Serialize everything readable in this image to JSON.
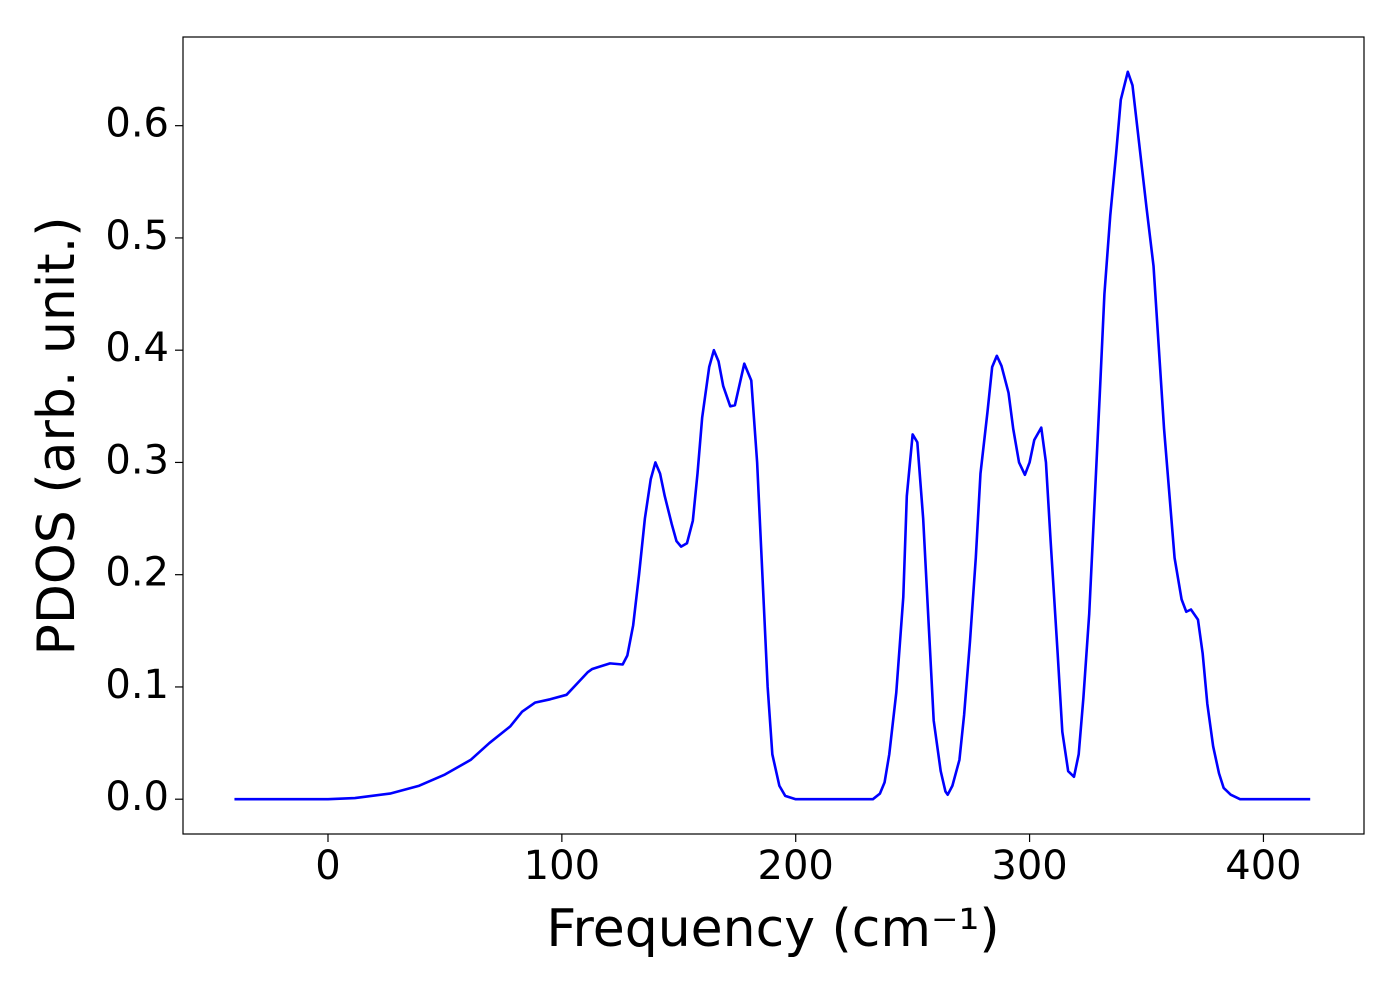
{
  "chart_data": {
    "type": "line",
    "xlabel": "Frequency (cm⁻¹)",
    "ylabel": "PDOS (arb. unit.)",
    "xlim": [
      -62,
      443
    ],
    "ylim": [
      -0.031,
      0.679
    ],
    "xticks": [
      0,
      100,
      200,
      300,
      400
    ],
    "yticks": [
      {
        "value": 0,
        "label": "0.0"
      },
      0.1,
      0.2,
      0.3,
      0.4,
      0.5,
      0.6
    ],
    "grid": false,
    "series": [
      {
        "color": "#0000ff",
        "x": [
          -40,
          0,
          11.5,
          26.5,
          39,
          50,
          61,
          69,
          78,
          83,
          88.5,
          95,
          102,
          106.5,
          111,
          113,
          116,
          120.6,
          126,
          128,
          130.5,
          133,
          135.5,
          138,
          140,
          142,
          144,
          147,
          149,
          151,
          153.5,
          156,
          158,
          160,
          163,
          165,
          167,
          169,
          172,
          174,
          178,
          181,
          183.5,
          188,
          190,
          193,
          195.5,
          200,
          233,
          236,
          238,
          240,
          243,
          246,
          247.5,
          250,
          252,
          254.5,
          257,
          259,
          262,
          264,
          265,
          267,
          270,
          272,
          274.5,
          277,
          279,
          282,
          284,
          286,
          288,
          291,
          293,
          295.5,
          298,
          300,
          302,
          305,
          307,
          309,
          312,
          314,
          316.5,
          319,
          321,
          323,
          325.5,
          330,
          332,
          334.5,
          337,
          339,
          342,
          344,
          350,
          353,
          357.5,
          362,
          365,
          367,
          369,
          372,
          374,
          376,
          378.5,
          381,
          383,
          386,
          390,
          420
        ],
        "values": [
          0,
          0,
          0.001,
          0.005,
          0.012,
          0.022,
          0.035,
          0.05,
          0.065,
          0.078,
          0.086,
          0.089,
          0.093,
          0.103,
          0.113,
          0.116,
          0.118,
          0.121,
          0.12,
          0.128,
          0.155,
          0.2,
          0.25,
          0.285,
          0.3,
          0.29,
          0.27,
          0.245,
          0.23,
          0.225,
          0.228,
          0.248,
          0.29,
          0.34,
          0.385,
          0.4,
          0.39,
          0.368,
          0.35,
          0.351,
          0.388,
          0.373,
          0.3,
          0.1,
          0.04,
          0.012,
          0.003,
          0,
          0,
          0.005,
          0.015,
          0.04,
          0.095,
          0.18,
          0.27,
          0.325,
          0.318,
          0.25,
          0.15,
          0.07,
          0.025,
          0.007,
          0.004,
          0.012,
          0.035,
          0.075,
          0.14,
          0.215,
          0.29,
          0.345,
          0.385,
          0.395,
          0.386,
          0.362,
          0.33,
          0.3,
          0.289,
          0.3,
          0.32,
          0.331,
          0.3,
          0.23,
          0.13,
          0.06,
          0.025,
          0.02,
          0.04,
          0.09,
          0.165,
          0.36,
          0.45,
          0.52,
          0.575,
          0.623,
          0.648,
          0.636,
          0.527,
          0.475,
          0.33,
          0.215,
          0.178,
          0.167,
          0.169,
          0.16,
          0.13,
          0.085,
          0.047,
          0.023,
          0.01,
          0.004,
          0,
          0
        ]
      }
    ]
  }
}
